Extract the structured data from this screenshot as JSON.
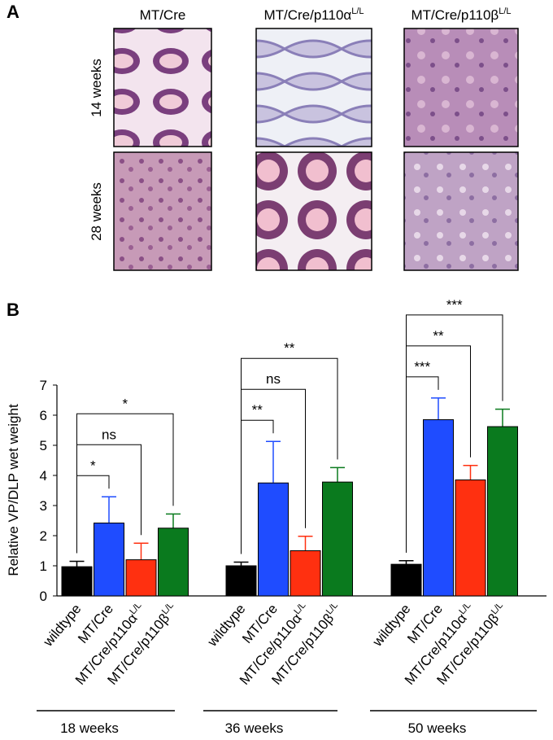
{
  "panel_a": {
    "label": "A",
    "columns": [
      {
        "text": "MT/Cre"
      },
      {
        "text": "MT/Cre/p110α",
        "sup": "L/L"
      },
      {
        "text": "MT/Cre/p110β",
        "sup": "L/L"
      }
    ],
    "rows": [
      "14 weeks",
      "28 weeks"
    ]
  },
  "chart_data": {
    "type": "bar",
    "panel_label": "B",
    "y_label": "Relative VP/DLP wet weight",
    "categories": [
      "wildtype",
      "MT/Cre",
      "MT/Cre/p110α",
      "MT/Cre/p110β"
    ],
    "category_superscripts": [
      null,
      null,
      "L/L",
      "L/L"
    ],
    "colors": [
      "#000000",
      "#1f4cff",
      "#ff3010",
      "#0a7a1e"
    ],
    "groups": [
      {
        "name": "18 weeks",
        "values": [
          0.97,
          2.42,
          1.2,
          2.25
        ],
        "errors": [
          0.18,
          0.87,
          0.55,
          0.47
        ],
        "significance": [
          "*",
          "ns",
          "*"
        ]
      },
      {
        "name": "36 weeks",
        "values": [
          1.0,
          3.75,
          1.5,
          3.78
        ],
        "errors": [
          0.12,
          1.38,
          0.48,
          0.48
        ],
        "significance": [
          "**",
          "ns",
          "**"
        ]
      },
      {
        "name": "50 weeks",
        "values": [
          1.05,
          5.85,
          3.85,
          5.62
        ],
        "errors": [
          0.12,
          0.72,
          0.48,
          0.58
        ],
        "significance": [
          "***",
          "**",
          "***"
        ]
      }
    ],
    "ylim": [
      0,
      7
    ],
    "yticks": [
      0,
      1,
      2,
      3,
      4,
      5,
      6,
      7
    ]
  }
}
